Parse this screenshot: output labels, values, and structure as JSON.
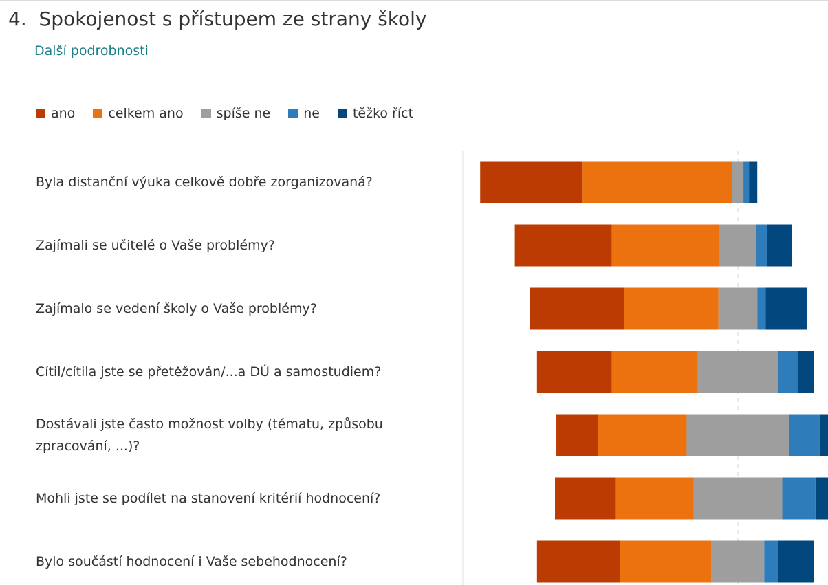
{
  "title": "4.  Spokojenost s přístupem ze strany školy",
  "link": "Další podrobnosti",
  "chart_data": {
    "type": "diverging-bar",
    "categories": [
      "Byla distanční výuka celkově dobře zorganizovaná?",
      "Zajímali se učitelé o Vaše problémy?",
      "Zajímalo se vedení školy o Vaše problémy?",
      "Cítil/cítila jste se přetěžován/...a DÚ a samostudiem?",
      "Dostávali jste často možnost volby (tématu, způsobu zpracování, ...)?",
      "Mohli jste se podílet na stanovení kritérií hodnocení?",
      "Bylo součástí hodnocení i Vaše sebehodnocení?"
    ],
    "series": [
      {
        "name": "ano",
        "color": "#bb3b02",
        "values": [
          37,
          35,
          34,
          27,
          15,
          22,
          30
        ]
      },
      {
        "name": "celkem ano",
        "color": "#ec7210",
        "values": [
          54,
          39,
          34,
          31,
          32,
          28,
          33
        ]
      },
      {
        "name": "spíše ne",
        "color": "#9e9e9e",
        "values": [
          4,
          13,
          14,
          29,
          37,
          32,
          19
        ]
      },
      {
        "name": "ne",
        "color": "#2f7cbb",
        "values": [
          2,
          4,
          3,
          7,
          11,
          12,
          5
        ]
      },
      {
        "name": "těžko říct",
        "color": "#03477f",
        "values": [
          3,
          9,
          15,
          6,
          5,
          6,
          13
        ]
      }
    ]
  }
}
